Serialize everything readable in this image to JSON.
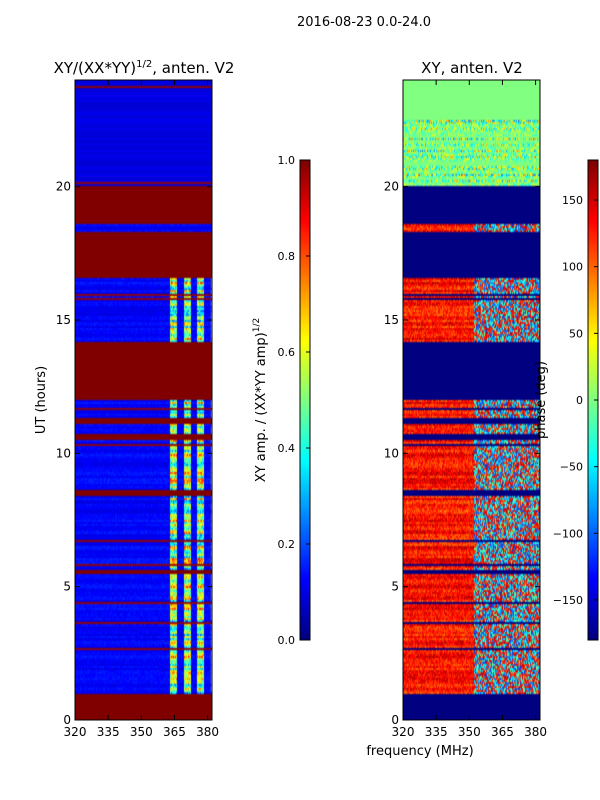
{
  "suptitle": "2016-08-23 0.0-24.0",
  "chart_data": [
    {
      "type": "heatmap",
      "title_main": "XY/(XX*YY)",
      "title_exp": "1/2",
      "title_tail": ", anten. V2",
      "ylabel": "UT (hours)",
      "xlabel": "",
      "xlim": [
        320,
        382
      ],
      "ylim": [
        0,
        24
      ],
      "x_ticks": [
        320,
        335,
        350,
        365,
        380
      ],
      "y_ticks": [
        0,
        5,
        10,
        15,
        20
      ],
      "x_tick_labels": [
        "320",
        "335",
        "350",
        "365",
        "380"
      ],
      "y_tick_labels": [
        "0",
        "5",
        "10",
        "15",
        "20"
      ],
      "colorbar": {
        "label_main": "XY amp. / (XX*YY amp)",
        "label_exp": "1/2",
        "range": [
          0.0,
          1.0
        ],
        "ticks": [
          0.0,
          0.2,
          0.4,
          0.6,
          0.8,
          1.0
        ],
        "tick_labels": [
          "0.0",
          "0.2",
          "0.4",
          "0.6",
          "0.8",
          "1.0"
        ],
        "colormap": "jet"
      },
      "saturated_bands_hours": [
        [
          0.0,
          1.0
        ],
        [
          5.5,
          5.65
        ],
        [
          8.4,
          8.6
        ],
        [
          10.5,
          10.7
        ],
        [
          11.1,
          11.3
        ],
        [
          12.0,
          14.2
        ],
        [
          16.6,
          18.3
        ],
        [
          18.6,
          20.0
        ]
      ],
      "background_value": 0.08,
      "active_channel_range_mhz": [
        363,
        382
      ],
      "active_value": 0.45
    },
    {
      "type": "heatmap",
      "title_main": "XY, anten. V2",
      "xlabel": "frequency (MHz)",
      "ylabel": "",
      "xlim": [
        320,
        382
      ],
      "ylim": [
        0,
        24
      ],
      "x_ticks": [
        320,
        335,
        350,
        365,
        380
      ],
      "y_ticks": [
        0,
        5,
        10,
        15,
        20
      ],
      "x_tick_labels": [
        "320",
        "335",
        "350",
        "365",
        "380"
      ],
      "y_tick_labels": [
        "0",
        "5",
        "10",
        "15",
        "20"
      ],
      "colorbar": {
        "label_main": "phase (deg)",
        "range": [
          -180,
          180
        ],
        "ticks": [
          -150,
          -100,
          -50,
          0,
          50,
          100,
          150
        ],
        "tick_labels": [
          "−150",
          "−100",
          "−50",
          "0",
          "50",
          "100",
          "150"
        ],
        "colormap": "jet"
      },
      "flagged_value_deg": -180,
      "flagged_bands_hours": [
        [
          0.0,
          1.0
        ],
        [
          5.5,
          5.65
        ],
        [
          8.4,
          8.6
        ],
        [
          10.5,
          10.7
        ],
        [
          11.1,
          11.3
        ],
        [
          12.0,
          14.2
        ],
        [
          16.6,
          18.3
        ],
        [
          18.6,
          20.0
        ]
      ],
      "top_band_hours": [
        20.0,
        24.0
      ],
      "top_band_value_deg": 0,
      "typical_phase_deg": 130,
      "active_channel_range_mhz": [
        352,
        382
      ],
      "active_phase_deg": -60
    }
  ]
}
